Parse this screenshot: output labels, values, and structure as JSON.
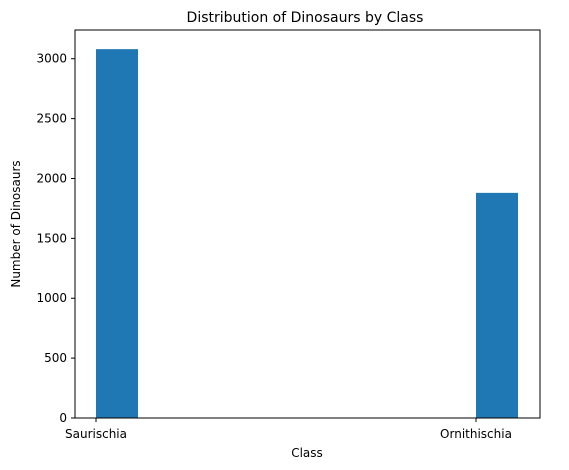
{
  "chart_data": {
    "type": "bar",
    "title": "Distribution of Dinosaurs by Class",
    "xlabel": "Class",
    "ylabel": "Number of Dinosaurs",
    "categories": [
      "Saurischia",
      "Ornithischia"
    ],
    "values": [
      3080,
      1880
    ],
    "ylim": [
      0,
      3240
    ],
    "yticks": [
      0,
      500,
      1000,
      1500,
      2000,
      2500,
      3000
    ],
    "bar_color": "#1f77b4",
    "grid": false,
    "legend": "none"
  }
}
